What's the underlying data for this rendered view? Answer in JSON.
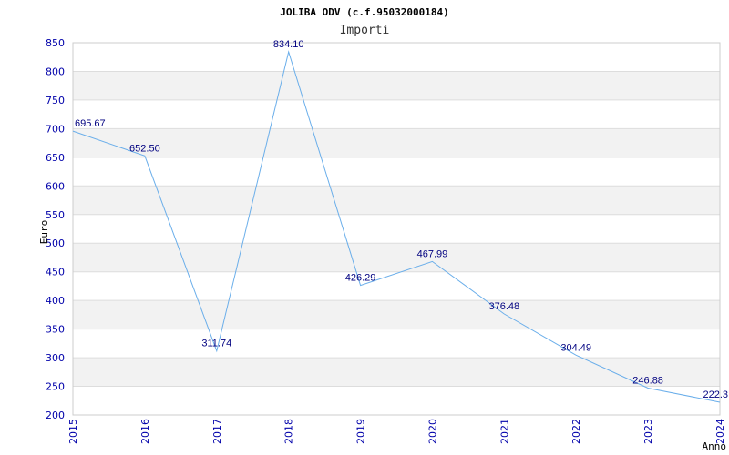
{
  "chart_data": {
    "type": "line",
    "title": "JOLIBA ODV (c.f.95032000184)",
    "subtitle": "Importi",
    "xlabel": "Anno",
    "ylabel": "Euro",
    "categories": [
      "2015",
      "2016",
      "2017",
      "2018",
      "2019",
      "2020",
      "2021",
      "2022",
      "2023",
      "2024"
    ],
    "values": [
      695.67,
      652.5,
      311.74,
      834.1,
      426.29,
      467.99,
      376.48,
      304.49,
      246.88,
      222.3
    ],
    "value_labels": [
      "695.67",
      "652.50",
      "311.74",
      "834.10",
      "426.29",
      "467.99",
      "376.48",
      "304.49",
      "246.88",
      "222.3"
    ],
    "ylim": [
      200,
      850
    ],
    "yticks": [
      "200",
      "250",
      "300",
      "350",
      "400",
      "450",
      "500",
      "550",
      "600",
      "650",
      "700",
      "750",
      "800",
      "850"
    ],
    "grid": true,
    "legend": "none",
    "colors": {
      "line": "#6aaeea",
      "band": "#f2f2f2",
      "grid": "#dddddd",
      "tick_text": "#0000aa",
      "label_text": "#000080"
    }
  }
}
